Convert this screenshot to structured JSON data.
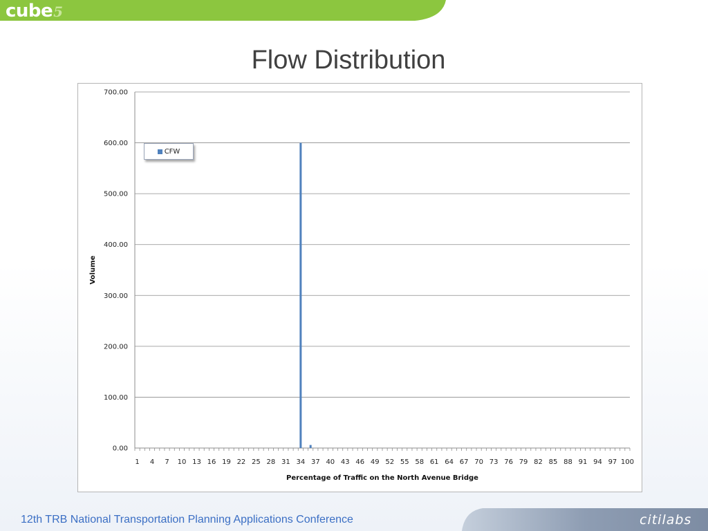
{
  "header": {
    "logo_text": "cube",
    "logo_number": "5",
    "brand_color": "#8cc63f"
  },
  "slide": {
    "title": "Flow Distribution"
  },
  "footer": {
    "conference": "12th TRB National Transportation Planning Applications Conference",
    "company": "citilabs"
  },
  "chart_data": {
    "type": "bar",
    "xlabel": "Percentage of Traffic on the North Avenue Bridge",
    "ylabel": "Volume",
    "ylim": [
      0,
      700
    ],
    "yticks": [
      "0.00",
      "100.00",
      "200.00",
      "300.00",
      "400.00",
      "500.00",
      "600.00",
      "700.00"
    ],
    "x_range": [
      1,
      100
    ],
    "x_tick_labels": [
      "1",
      "4",
      "7",
      "10",
      "13",
      "16",
      "19",
      "22",
      "25",
      "28",
      "31",
      "34",
      "37",
      "40",
      "43",
      "46",
      "49",
      "52",
      "55",
      "58",
      "61",
      "64",
      "67",
      "70",
      "73",
      "76",
      "79",
      "82",
      "85",
      "88",
      "91",
      "94",
      "97",
      "100"
    ],
    "grid": true,
    "legend_position": "top-left",
    "series": [
      {
        "name": "CFW",
        "color": "#4f81bd",
        "points": [
          {
            "x": 34,
            "y": 600
          },
          {
            "x": 36,
            "y": 6
          }
        ]
      }
    ]
  }
}
